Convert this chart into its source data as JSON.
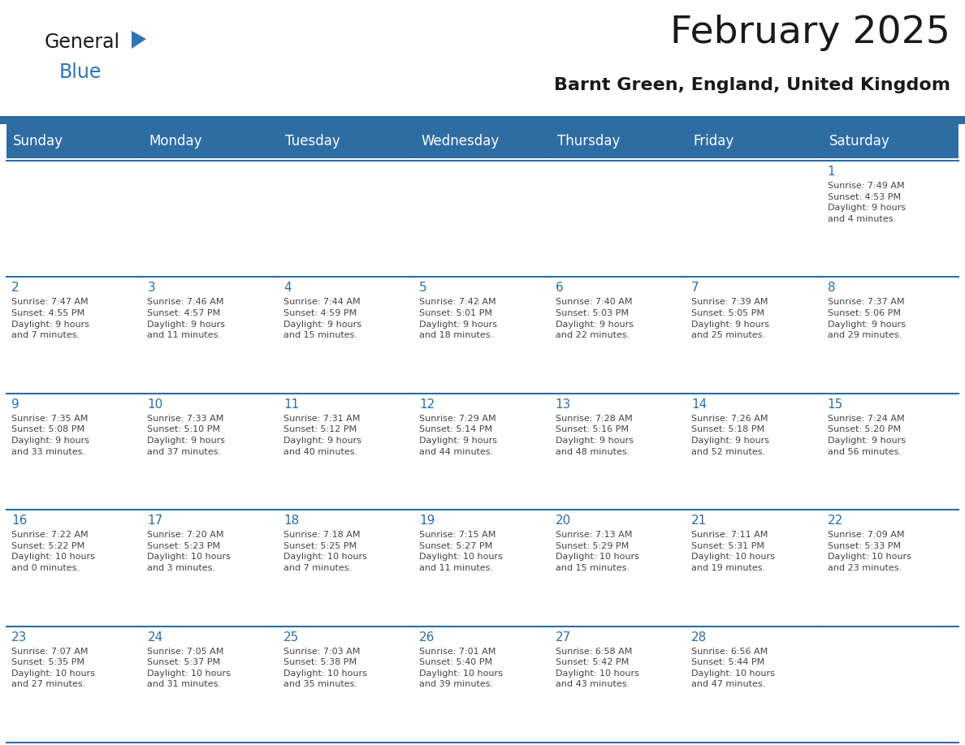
{
  "title": "February 2025",
  "subtitle": "Barnt Green, England, United Kingdom",
  "days_of_week": [
    "Sunday",
    "Monday",
    "Tuesday",
    "Wednesday",
    "Thursday",
    "Friday",
    "Saturday"
  ],
  "header_bg": "#2E6DA4",
  "header_text": "#FFFFFF",
  "cell_bg": "#FFFFFF",
  "cell_border": "#2E6DA4",
  "day_number_color": "#2E6DA4",
  "cell_text_color": "#444444",
  "logo_general_color": "#1a1a1a",
  "logo_blue_color": "#2E75B6",
  "weeks": [
    [
      {
        "day": null,
        "info": null
      },
      {
        "day": null,
        "info": null
      },
      {
        "day": null,
        "info": null
      },
      {
        "day": null,
        "info": null
      },
      {
        "day": null,
        "info": null
      },
      {
        "day": null,
        "info": null
      },
      {
        "day": 1,
        "info": "Sunrise: 7:49 AM\nSunset: 4:53 PM\nDaylight: 9 hours\nand 4 minutes."
      }
    ],
    [
      {
        "day": 2,
        "info": "Sunrise: 7:47 AM\nSunset: 4:55 PM\nDaylight: 9 hours\nand 7 minutes."
      },
      {
        "day": 3,
        "info": "Sunrise: 7:46 AM\nSunset: 4:57 PM\nDaylight: 9 hours\nand 11 minutes."
      },
      {
        "day": 4,
        "info": "Sunrise: 7:44 AM\nSunset: 4:59 PM\nDaylight: 9 hours\nand 15 minutes."
      },
      {
        "day": 5,
        "info": "Sunrise: 7:42 AM\nSunset: 5:01 PM\nDaylight: 9 hours\nand 18 minutes."
      },
      {
        "day": 6,
        "info": "Sunrise: 7:40 AM\nSunset: 5:03 PM\nDaylight: 9 hours\nand 22 minutes."
      },
      {
        "day": 7,
        "info": "Sunrise: 7:39 AM\nSunset: 5:05 PM\nDaylight: 9 hours\nand 25 minutes."
      },
      {
        "day": 8,
        "info": "Sunrise: 7:37 AM\nSunset: 5:06 PM\nDaylight: 9 hours\nand 29 minutes."
      }
    ],
    [
      {
        "day": 9,
        "info": "Sunrise: 7:35 AM\nSunset: 5:08 PM\nDaylight: 9 hours\nand 33 minutes."
      },
      {
        "day": 10,
        "info": "Sunrise: 7:33 AM\nSunset: 5:10 PM\nDaylight: 9 hours\nand 37 minutes."
      },
      {
        "day": 11,
        "info": "Sunrise: 7:31 AM\nSunset: 5:12 PM\nDaylight: 9 hours\nand 40 minutes."
      },
      {
        "day": 12,
        "info": "Sunrise: 7:29 AM\nSunset: 5:14 PM\nDaylight: 9 hours\nand 44 minutes."
      },
      {
        "day": 13,
        "info": "Sunrise: 7:28 AM\nSunset: 5:16 PM\nDaylight: 9 hours\nand 48 minutes."
      },
      {
        "day": 14,
        "info": "Sunrise: 7:26 AM\nSunset: 5:18 PM\nDaylight: 9 hours\nand 52 minutes."
      },
      {
        "day": 15,
        "info": "Sunrise: 7:24 AM\nSunset: 5:20 PM\nDaylight: 9 hours\nand 56 minutes."
      }
    ],
    [
      {
        "day": 16,
        "info": "Sunrise: 7:22 AM\nSunset: 5:22 PM\nDaylight: 10 hours\nand 0 minutes."
      },
      {
        "day": 17,
        "info": "Sunrise: 7:20 AM\nSunset: 5:23 PM\nDaylight: 10 hours\nand 3 minutes."
      },
      {
        "day": 18,
        "info": "Sunrise: 7:18 AM\nSunset: 5:25 PM\nDaylight: 10 hours\nand 7 minutes."
      },
      {
        "day": 19,
        "info": "Sunrise: 7:15 AM\nSunset: 5:27 PM\nDaylight: 10 hours\nand 11 minutes."
      },
      {
        "day": 20,
        "info": "Sunrise: 7:13 AM\nSunset: 5:29 PM\nDaylight: 10 hours\nand 15 minutes."
      },
      {
        "day": 21,
        "info": "Sunrise: 7:11 AM\nSunset: 5:31 PM\nDaylight: 10 hours\nand 19 minutes."
      },
      {
        "day": 22,
        "info": "Sunrise: 7:09 AM\nSunset: 5:33 PM\nDaylight: 10 hours\nand 23 minutes."
      }
    ],
    [
      {
        "day": 23,
        "info": "Sunrise: 7:07 AM\nSunset: 5:35 PM\nDaylight: 10 hours\nand 27 minutes."
      },
      {
        "day": 24,
        "info": "Sunrise: 7:05 AM\nSunset: 5:37 PM\nDaylight: 10 hours\nand 31 minutes."
      },
      {
        "day": 25,
        "info": "Sunrise: 7:03 AM\nSunset: 5:38 PM\nDaylight: 10 hours\nand 35 minutes."
      },
      {
        "day": 26,
        "info": "Sunrise: 7:01 AM\nSunset: 5:40 PM\nDaylight: 10 hours\nand 39 minutes."
      },
      {
        "day": 27,
        "info": "Sunrise: 6:58 AM\nSunset: 5:42 PM\nDaylight: 10 hours\nand 43 minutes."
      },
      {
        "day": 28,
        "info": "Sunrise: 6:56 AM\nSunset: 5:44 PM\nDaylight: 10 hours\nand 47 minutes."
      },
      {
        "day": null,
        "info": null
      }
    ]
  ],
  "title_fontsize": 34,
  "subtitle_fontsize": 16,
  "dow_fontsize": 12,
  "day_num_fontsize": 11,
  "cell_info_fontsize": 8
}
